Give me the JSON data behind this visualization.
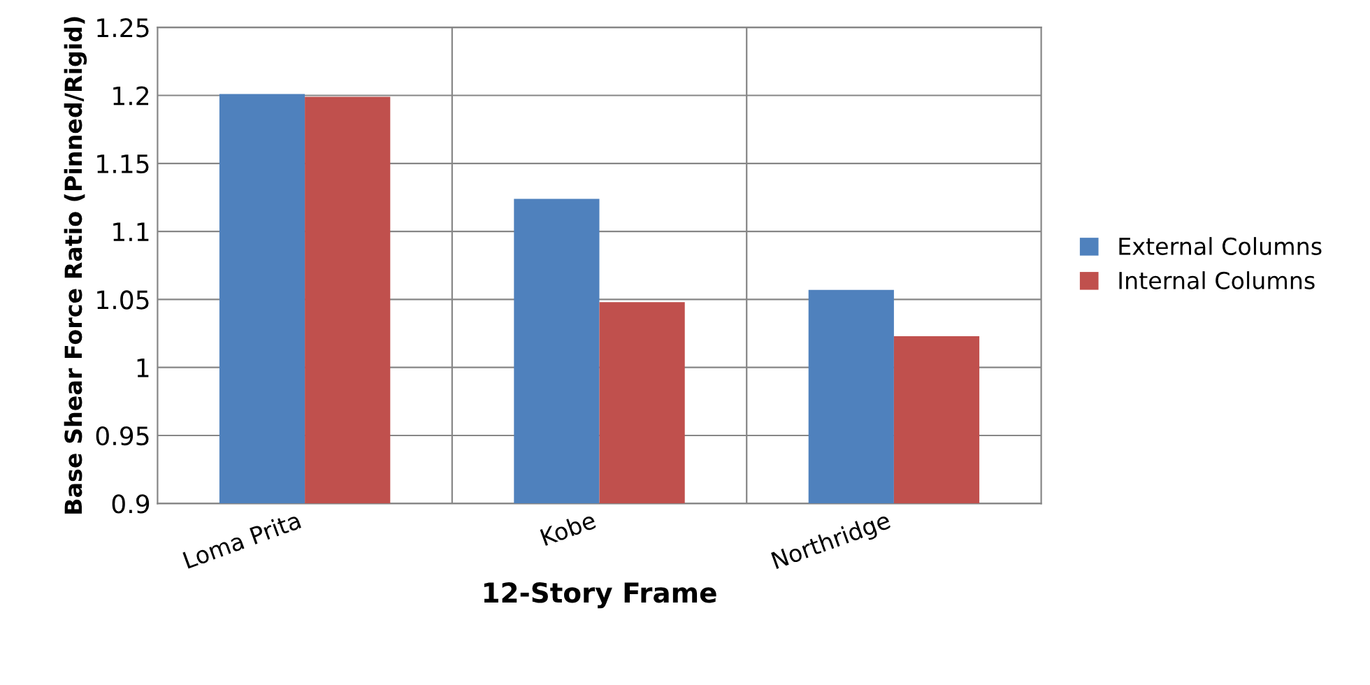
{
  "chart_data": {
    "type": "bar",
    "xlabel": "12-Story Frame",
    "ylabel": "Base Shear Force Ratio (Pinned/Rigid)",
    "categories": [
      "Loma Prita",
      "Kobe",
      "Northridge"
    ],
    "series": [
      {
        "name": "External Columns",
        "color": "#4f81bd",
        "values": [
          1.201,
          1.124,
          1.057
        ]
      },
      {
        "name": "Internal Columns",
        "color": "#c0504d",
        "values": [
          1.199,
          1.048,
          1.023
        ]
      }
    ],
    "ylim": [
      0.9,
      1.25
    ],
    "yticks": [
      0.9,
      0.95,
      1,
      1.05,
      1.1,
      1.15,
      1.2,
      1.25
    ],
    "grid": true,
    "legend": "right"
  }
}
